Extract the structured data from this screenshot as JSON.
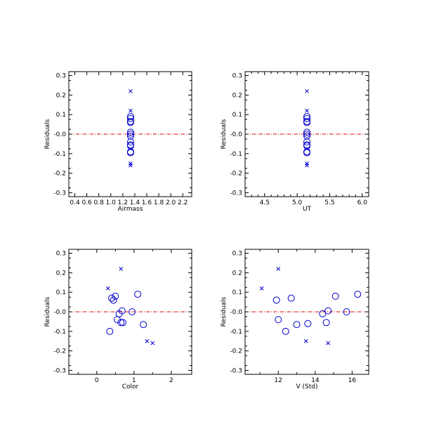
{
  "colors": {
    "marker": "#0000cc",
    "zero_line": "#dd0000",
    "axes": "#000000"
  },
  "chart_data": [
    {
      "type": "scatter",
      "xlabel": "Airmass",
      "ylabel": "Residuals",
      "xlim": [
        0.3,
        2.35
      ],
      "ylim": [
        -0.32,
        0.32
      ],
      "xticks": [
        0.4,
        0.6,
        0.8,
        1.0,
        1.2,
        1.4,
        1.6,
        1.8,
        2.0,
        2.2
      ],
      "xtick_labels": [
        "0.4",
        "0.6",
        "0.8",
        "1.0",
        "1.2",
        "1.4",
        "1.6",
        "1.8",
        "2.0",
        "2.2"
      ],
      "yticks": [
        -0.3,
        -0.2,
        -0.1,
        0.0,
        0.1,
        0.2,
        0.3
      ],
      "ytick_labels": [
        "-0.3",
        "-0.2",
        "-0.1",
        "-0.0",
        "0.1",
        "0.2",
        "0.3"
      ],
      "zero_line": 0.0,
      "series": [
        {
          "marker": "circle",
          "points": [
            [
              1.33,
              0.09
            ],
            [
              1.33,
              0.08
            ],
            [
              1.33,
              0.065
            ],
            [
              1.33,
              0.06
            ],
            [
              1.33,
              0.01
            ],
            [
              1.33,
              0.0
            ],
            [
              1.33,
              -0.01
            ],
            [
              1.33,
              -0.04
            ],
            [
              1.33,
              -0.055
            ],
            [
              1.33,
              -0.06
            ],
            [
              1.33,
              -0.09
            ],
            [
              1.33,
              -0.095
            ]
          ]
        },
        {
          "marker": "cross",
          "points": [
            [
              1.33,
              0.22
            ],
            [
              1.33,
              0.12
            ],
            [
              1.33,
              -0.15
            ],
            [
              1.33,
              -0.16
            ]
          ]
        }
      ]
    },
    {
      "type": "scatter",
      "xlabel": "UT",
      "ylabel": "Residuals",
      "xlim": [
        4.2,
        6.1
      ],
      "ylim": [
        -0.32,
        0.32
      ],
      "xticks": [
        4.5,
        5.0,
        5.5,
        6.0
      ],
      "xtick_labels": [
        "4.5",
        "5.0",
        "5.5",
        "6.0"
      ],
      "minor_xticks": [
        4.3,
        4.4,
        4.6,
        4.7,
        4.8,
        4.9,
        5.1,
        5.2,
        5.3,
        5.4,
        5.6,
        5.7,
        5.8,
        5.9
      ],
      "yticks": [
        -0.3,
        -0.2,
        -0.1,
        0.0,
        0.1,
        0.2,
        0.3
      ],
      "ytick_labels": [
        "-0.3",
        "-0.2",
        "-0.1",
        "-0.0",
        "0.1",
        "0.2",
        "0.3"
      ],
      "zero_line": 0.0,
      "series": [
        {
          "marker": "circle",
          "points": [
            [
              5.15,
              0.09
            ],
            [
              5.15,
              0.08
            ],
            [
              5.15,
              0.065
            ],
            [
              5.15,
              0.06
            ],
            [
              5.15,
              0.01
            ],
            [
              5.15,
              0.0
            ],
            [
              5.15,
              -0.01
            ],
            [
              5.15,
              -0.04
            ],
            [
              5.15,
              -0.055
            ],
            [
              5.15,
              -0.06
            ],
            [
              5.15,
              -0.09
            ],
            [
              5.15,
              -0.095
            ]
          ]
        },
        {
          "marker": "cross",
          "points": [
            [
              5.15,
              0.22
            ],
            [
              5.15,
              0.12
            ],
            [
              5.15,
              -0.15
            ],
            [
              5.15,
              -0.16
            ]
          ]
        }
      ]
    },
    {
      "type": "scatter",
      "xlabel": "Color",
      "ylabel": "Residuals",
      "xlim": [
        -0.75,
        2.55
      ],
      "ylim": [
        -0.32,
        0.32
      ],
      "xticks": [
        0,
        1,
        2
      ],
      "xtick_labels": [
        "0",
        "1",
        "2"
      ],
      "minor_xticks": [
        -0.5,
        0.5,
        1.5
      ],
      "yticks": [
        -0.3,
        -0.2,
        -0.1,
        0.0,
        0.1,
        0.2,
        0.3
      ],
      "ytick_labels": [
        "-0.3",
        "-0.2",
        "-0.1",
        "-0.0",
        "0.1",
        "0.2",
        "0.3"
      ],
      "zero_line": 0.0,
      "series": [
        {
          "marker": "circle",
          "points": [
            [
              0.35,
              -0.1
            ],
            [
              0.4,
              0.07
            ],
            [
              0.45,
              0.06
            ],
            [
              0.5,
              0.08
            ],
            [
              0.55,
              -0.04
            ],
            [
              0.6,
              -0.01
            ],
            [
              0.65,
              -0.055
            ],
            [
              0.7,
              -0.055
            ],
            [
              0.68,
              0.005
            ],
            [
              0.95,
              0.0
            ],
            [
              1.1,
              0.09
            ],
            [
              1.25,
              -0.065
            ]
          ]
        },
        {
          "marker": "cross",
          "points": [
            [
              0.3,
              0.12
            ],
            [
              0.65,
              0.22
            ],
            [
              1.35,
              -0.15
            ],
            [
              1.5,
              -0.16
            ]
          ]
        }
      ]
    },
    {
      "type": "scatter",
      "xlabel": "V (Std)",
      "ylabel": "Residuals",
      "xlim": [
        10.2,
        16.9
      ],
      "ylim": [
        -0.32,
        0.32
      ],
      "xticks": [
        12,
        14,
        16
      ],
      "xtick_labels": [
        "12",
        "14",
        "16"
      ],
      "minor_xticks": [
        11,
        13,
        15
      ],
      "yticks": [
        -0.3,
        -0.2,
        -0.1,
        0.0,
        0.1,
        0.2,
        0.3
      ],
      "ytick_labels": [
        "-0.3",
        "-0.2",
        "-0.1",
        "-0.0",
        "0.1",
        "0.2",
        "0.3"
      ],
      "zero_line": 0.0,
      "series": [
        {
          "marker": "circle",
          "points": [
            [
              11.9,
              0.06
            ],
            [
              12.0,
              -0.04
            ],
            [
              12.4,
              -0.1
            ],
            [
              12.7,
              0.07
            ],
            [
              13.0,
              -0.065
            ],
            [
              13.6,
              -0.06
            ],
            [
              14.4,
              -0.01
            ],
            [
              14.6,
              -0.055
            ],
            [
              14.7,
              0.005
            ],
            [
              15.1,
              0.08
            ],
            [
              15.7,
              0.0
            ],
            [
              16.3,
              0.09
            ]
          ]
        },
        {
          "marker": "cross",
          "points": [
            [
              11.1,
              0.12
            ],
            [
              12.0,
              0.22
            ],
            [
              13.5,
              -0.15
            ],
            [
              14.7,
              -0.16
            ]
          ]
        }
      ]
    }
  ]
}
